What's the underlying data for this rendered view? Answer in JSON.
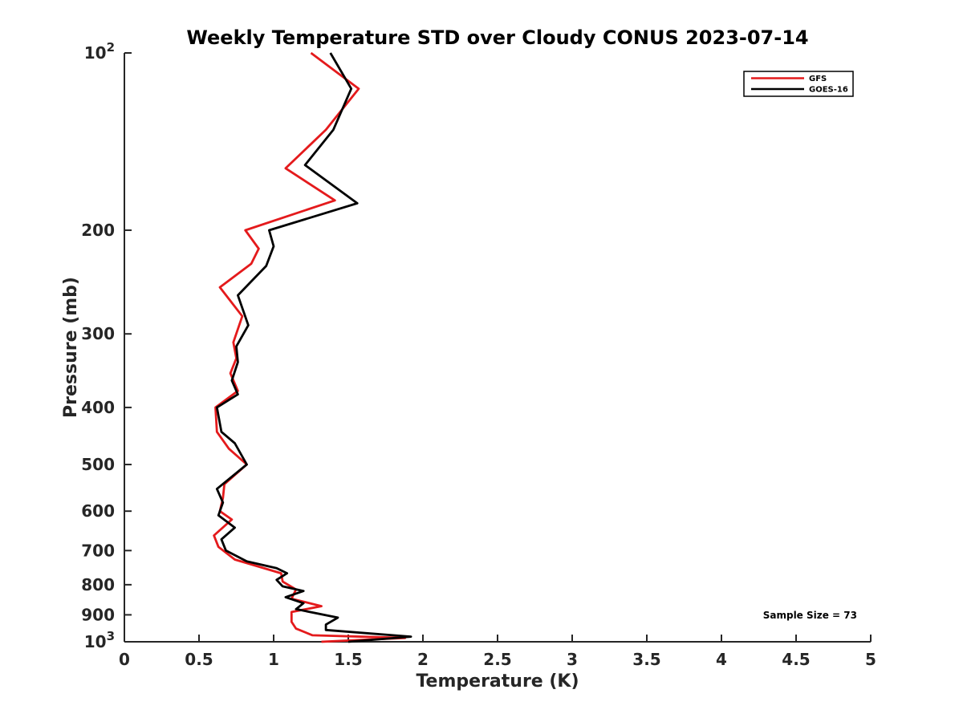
{
  "chart_data": {
    "type": "line",
    "title": "Weekly Temperature STD over Cloudy CONUS 2023-07-14",
    "xlabel": "Temperature (K)",
    "ylabel": "Pressure (mb)",
    "xlim": [
      0,
      5
    ],
    "ylim": [
      100,
      1000
    ],
    "y_scale": "log",
    "y_reversed": true,
    "x_ticks": [
      {
        "value": 0,
        "label": "0"
      },
      {
        "value": 0.5,
        "label": "0.5"
      },
      {
        "value": 1,
        "label": "1"
      },
      {
        "value": 1.5,
        "label": "1.5"
      },
      {
        "value": 2,
        "label": "2"
      },
      {
        "value": 2.5,
        "label": "2.5"
      },
      {
        "value": 3,
        "label": "3"
      },
      {
        "value": 3.5,
        "label": "3.5"
      },
      {
        "value": 4,
        "label": "4"
      },
      {
        "value": 4.5,
        "label": "4.5"
      },
      {
        "value": 5,
        "label": "5"
      }
    ],
    "y_ticks": [
      {
        "value": 100,
        "label": "10",
        "sup": "2"
      },
      {
        "value": 200,
        "label": "200",
        "sup": ""
      },
      {
        "value": 300,
        "label": "300",
        "sup": ""
      },
      {
        "value": 400,
        "label": "400",
        "sup": ""
      },
      {
        "value": 500,
        "label": "500",
        "sup": ""
      },
      {
        "value": 600,
        "label": "600",
        "sup": ""
      },
      {
        "value": 700,
        "label": "700",
        "sup": ""
      },
      {
        "value": 800,
        "label": "800",
        "sup": ""
      },
      {
        "value": 900,
        "label": "900",
        "sup": ""
      },
      {
        "value": 1000,
        "label": "10",
        "sup": "3"
      }
    ],
    "grid": false,
    "legend_position": "top-right",
    "annotation": "Sample Size = 73",
    "series": [
      {
        "name": "GFS",
        "color": "#e41a1c",
        "points": [
          [
            1.25,
            100
          ],
          [
            1.57,
            115
          ],
          [
            1.35,
            135
          ],
          [
            1.08,
            157
          ],
          [
            1.41,
            178
          ],
          [
            0.81,
            200
          ],
          [
            0.9,
            215
          ],
          [
            0.85,
            228
          ],
          [
            0.64,
            250
          ],
          [
            0.79,
            280
          ],
          [
            0.73,
            310
          ],
          [
            0.75,
            330
          ],
          [
            0.71,
            350
          ],
          [
            0.76,
            375
          ],
          [
            0.61,
            400
          ],
          [
            0.62,
            440
          ],
          [
            0.7,
            470
          ],
          [
            0.82,
            500
          ],
          [
            0.67,
            540
          ],
          [
            0.66,
            570
          ],
          [
            0.64,
            600
          ],
          [
            0.72,
            620
          ],
          [
            0.6,
            660
          ],
          [
            0.63,
            690
          ],
          [
            0.74,
            725
          ],
          [
            1.05,
            765
          ],
          [
            1.06,
            790
          ],
          [
            1.15,
            815
          ],
          [
            1.12,
            845
          ],
          [
            1.32,
            870
          ],
          [
            1.12,
            890
          ],
          [
            1.12,
            925
          ],
          [
            1.15,
            950
          ],
          [
            1.26,
            975
          ],
          [
            1.88,
            985
          ],
          [
            1.5,
            995
          ],
          [
            1.32,
            1000
          ]
        ]
      },
      {
        "name": "GOES-16",
        "color": "#000000",
        "points": [
          [
            1.38,
            100
          ],
          [
            1.52,
            115
          ],
          [
            1.4,
            135
          ],
          [
            1.21,
            155
          ],
          [
            1.56,
            180
          ],
          [
            0.97,
            200
          ],
          [
            1.0,
            213
          ],
          [
            0.95,
            230
          ],
          [
            0.76,
            258
          ],
          [
            0.83,
            290
          ],
          [
            0.75,
            315
          ],
          [
            0.76,
            335
          ],
          [
            0.72,
            360
          ],
          [
            0.76,
            380
          ],
          [
            0.62,
            400
          ],
          [
            0.65,
            440
          ],
          [
            0.74,
            460
          ],
          [
            0.82,
            500
          ],
          [
            0.62,
            550
          ],
          [
            0.66,
            580
          ],
          [
            0.63,
            610
          ],
          [
            0.74,
            640
          ],
          [
            0.65,
            670
          ],
          [
            0.68,
            700
          ],
          [
            0.82,
            730
          ],
          [
            1.02,
            750
          ],
          [
            1.09,
            765
          ],
          [
            1.02,
            785
          ],
          [
            1.06,
            805
          ],
          [
            1.2,
            820
          ],
          [
            1.08,
            840
          ],
          [
            1.2,
            860
          ],
          [
            1.15,
            880
          ],
          [
            1.43,
            910
          ],
          [
            1.35,
            935
          ],
          [
            1.35,
            955
          ],
          [
            1.92,
            980
          ],
          [
            1.5,
            1000
          ]
        ]
      }
    ]
  }
}
